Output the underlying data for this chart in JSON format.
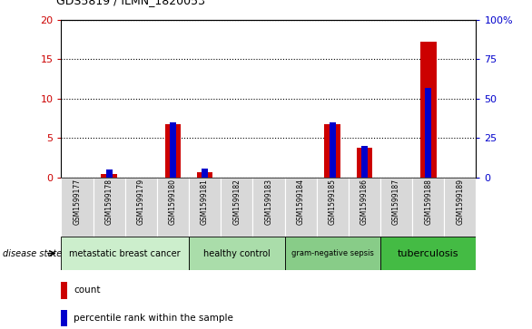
{
  "title": "GDS5819 / ILMN_1820053",
  "samples": [
    "GSM1599177",
    "GSM1599178",
    "GSM1599179",
    "GSM1599180",
    "GSM1599181",
    "GSM1599182",
    "GSM1599183",
    "GSM1599184",
    "GSM1599185",
    "GSM1599186",
    "GSM1599187",
    "GSM1599188",
    "GSM1599189"
  ],
  "count_values": [
    0,
    0.5,
    0,
    6.8,
    0.7,
    0,
    0,
    0,
    6.8,
    3.8,
    0,
    17.2,
    0
  ],
  "percentile_values": [
    0,
    5,
    0,
    35,
    6,
    0,
    0,
    0,
    35,
    20,
    0,
    57,
    0
  ],
  "ylim_left": [
    0,
    20
  ],
  "ylim_right": [
    0,
    100
  ],
  "yticks_left": [
    0,
    5,
    10,
    15,
    20
  ],
  "ytick_labels_left": [
    "0",
    "5",
    "10",
    "15",
    "20"
  ],
  "yticks_right": [
    0,
    25,
    50,
    75,
    100
  ],
  "ytick_labels_right": [
    "0",
    "25",
    "50",
    "75",
    "100%"
  ],
  "groups": [
    {
      "label": "metastatic breast cancer",
      "start": 0,
      "end": 4,
      "color": "#cceecc",
      "fontsize": 7
    },
    {
      "label": "healthy control",
      "start": 4,
      "end": 7,
      "color": "#aaddaa",
      "fontsize": 7
    },
    {
      "label": "gram-negative sepsis",
      "start": 7,
      "end": 10,
      "color": "#88cc88",
      "fontsize": 6
    },
    {
      "label": "tuberculosis",
      "start": 10,
      "end": 13,
      "color": "#44bb44",
      "fontsize": 8
    }
  ],
  "bar_color": "#cc0000",
  "percentile_color": "#0000cc",
  "bg_color": "#d8d8d8",
  "left_tick_color": "#cc0000",
  "right_tick_color": "#0000cc",
  "disease_state_label": "disease state",
  "legend_count_label": "count",
  "legend_percentile_label": "percentile rank within the sample"
}
